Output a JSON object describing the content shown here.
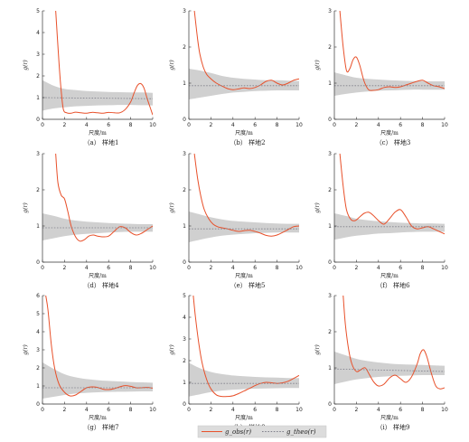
{
  "figure": {
    "xlabel": "尺度/m",
    "ylabel": "g(r)",
    "legend": {
      "observed_label": "g_obs(r)",
      "theoretical_label": "g_theo(r)"
    },
    "colors": {
      "observed": "#e8502a",
      "envelope": "#d0d0d0",
      "theoretical": "#7f7f8a",
      "axis": "#333333"
    }
  },
  "chart_data": [
    {
      "type": "line",
      "caption": "（a） 样地1",
      "xlim": [
        0,
        10
      ],
      "ylim": [
        0,
        5
      ],
      "xticks": [
        0,
        2,
        4,
        6,
        8,
        10
      ],
      "yticks": [
        0,
        1,
        2,
        3,
        4,
        5
      ],
      "series": [
        {
          "role": "observed",
          "x": [
            1.2,
            1.5,
            1.7,
            1.9,
            2.2,
            2.6,
            3.0,
            3.5,
            4.0,
            4.5,
            5.0,
            5.5,
            6.0,
            6.5,
            7.0,
            7.5,
            8.0,
            8.3,
            8.6,
            8.9,
            9.2,
            9.5,
            9.8,
            10.0
          ],
          "y": [
            5.0,
            2.6,
            1.3,
            0.45,
            0.3,
            0.28,
            0.33,
            0.3,
            0.28,
            0.32,
            0.3,
            0.28,
            0.32,
            0.3,
            0.3,
            0.45,
            0.8,
            1.2,
            1.55,
            1.65,
            1.45,
            0.95,
            0.5,
            0.2
          ]
        },
        {
          "role": "theoretical",
          "x": [
            0,
            10
          ],
          "y": [
            1.0,
            0.95
          ]
        }
      ],
      "envelope": {
        "x": [
          0,
          1,
          2,
          3,
          4,
          5,
          6,
          7,
          8,
          9,
          10
        ],
        "lower": [
          0.4,
          0.5,
          0.55,
          0.6,
          0.62,
          0.64,
          0.65,
          0.66,
          0.66,
          0.65,
          0.64
        ],
        "upper": [
          1.8,
          1.55,
          1.4,
          1.35,
          1.3,
          1.28,
          1.26,
          1.25,
          1.24,
          1.24,
          1.22
        ]
      }
    },
    {
      "type": "line",
      "caption": "（b） 样地2",
      "xlim": [
        0,
        10
      ],
      "ylim": [
        0,
        3
      ],
      "xticks": [
        0,
        2,
        4,
        6,
        8,
        10
      ],
      "yticks": [
        0,
        1,
        2,
        3
      ],
      "series": [
        {
          "role": "observed",
          "x": [
            0.5,
            0.8,
            1.0,
            1.3,
            1.6,
            2.0,
            2.5,
            3.0,
            3.5,
            4.0,
            4.5,
            5.0,
            5.5,
            6.0,
            6.5,
            7.0,
            7.5,
            8.0,
            8.5,
            9.0,
            9.5,
            10.0
          ],
          "y": [
            3.0,
            2.2,
            1.8,
            1.45,
            1.25,
            1.12,
            1.0,
            0.92,
            0.85,
            0.82,
            0.84,
            0.87,
            0.85,
            0.88,
            0.95,
            1.05,
            1.08,
            1.0,
            0.95,
            1.0,
            1.08,
            1.12
          ]
        },
        {
          "role": "theoretical",
          "x": [
            0,
            10
          ],
          "y": [
            0.93,
            0.93
          ]
        }
      ],
      "envelope": {
        "x": [
          0,
          1,
          2,
          3,
          4,
          5,
          6,
          7,
          8,
          9,
          10
        ],
        "lower": [
          0.55,
          0.6,
          0.65,
          0.7,
          0.74,
          0.76,
          0.78,
          0.79,
          0.8,
          0.8,
          0.8
        ],
        "upper": [
          1.4,
          1.35,
          1.28,
          1.2,
          1.15,
          1.12,
          1.1,
          1.08,
          1.08,
          1.07,
          1.06
        ]
      }
    },
    {
      "type": "line",
      "caption": "（c） 样地3",
      "xlim": [
        0,
        10
      ],
      "ylim": [
        0,
        3
      ],
      "xticks": [
        0,
        2,
        4,
        6,
        8,
        10
      ],
      "yticks": [
        0,
        1,
        2,
        3
      ],
      "series": [
        {
          "role": "observed",
          "x": [
            0.5,
            0.8,
            1.1,
            1.4,
            1.7,
            2.0,
            2.3,
            2.7,
            3.1,
            3.5,
            4.0,
            4.5,
            5.0,
            5.5,
            6.0,
            6.5,
            7.0,
            7.5,
            8.0,
            8.5,
            9.0,
            9.5,
            10.0
          ],
          "y": [
            3.0,
            2.0,
            1.35,
            1.4,
            1.65,
            1.72,
            1.5,
            1.05,
            0.82,
            0.8,
            0.82,
            0.88,
            0.9,
            0.88,
            0.9,
            0.95,
            1.0,
            1.05,
            1.08,
            1.0,
            0.93,
            0.9,
            0.85
          ]
        },
        {
          "role": "theoretical",
          "x": [
            0,
            10
          ],
          "y": [
            0.93,
            0.93
          ]
        }
      ],
      "envelope": {
        "x": [
          0,
          1,
          2,
          3,
          4,
          5,
          6,
          7,
          8,
          9,
          10
        ],
        "lower": [
          0.65,
          0.7,
          0.74,
          0.77,
          0.79,
          0.8,
          0.81,
          0.82,
          0.82,
          0.82,
          0.82
        ],
        "upper": [
          1.3,
          1.22,
          1.15,
          1.12,
          1.1,
          1.08,
          1.07,
          1.06,
          1.06,
          1.05,
          1.05
        ]
      }
    },
    {
      "type": "line",
      "caption": "（d） 样地4",
      "xlim": [
        0,
        10
      ],
      "ylim": [
        0,
        3
      ],
      "xticks": [
        0,
        2,
        4,
        6,
        8,
        10
      ],
      "yticks": [
        0,
        1,
        2,
        3
      ],
      "series": [
        {
          "role": "observed",
          "x": [
            1.2,
            1.4,
            1.7,
            2.0,
            2.3,
            2.6,
            3.0,
            3.4,
            3.8,
            4.2,
            4.6,
            5.0,
            5.5,
            6.0,
            6.5,
            7.0,
            7.5,
            8.0,
            8.5,
            9.0,
            9.5,
            10.0
          ],
          "y": [
            3.0,
            2.2,
            1.85,
            1.75,
            1.4,
            1.0,
            0.7,
            0.58,
            0.62,
            0.72,
            0.75,
            0.72,
            0.7,
            0.72,
            0.85,
            0.98,
            0.95,
            0.82,
            0.75,
            0.8,
            0.9,
            1.0
          ]
        },
        {
          "role": "theoretical",
          "x": [
            0,
            10
          ],
          "y": [
            0.95,
            0.95
          ]
        }
      ],
      "envelope": {
        "x": [
          0,
          1,
          2,
          3,
          4,
          5,
          6,
          7,
          8,
          9,
          10
        ],
        "lower": [
          0.6,
          0.66,
          0.72,
          0.76,
          0.78,
          0.8,
          0.82,
          0.83,
          0.84,
          0.84,
          0.84
        ],
        "upper": [
          1.35,
          1.28,
          1.2,
          1.15,
          1.12,
          1.1,
          1.08,
          1.07,
          1.06,
          1.05,
          1.05
        ]
      }
    },
    {
      "type": "line",
      "caption": "（e） 样地5",
      "xlim": [
        0,
        10
      ],
      "ylim": [
        0,
        3
      ],
      "xticks": [
        0,
        2,
        4,
        6,
        8,
        10
      ],
      "yticks": [
        0,
        1,
        2,
        3
      ],
      "series": [
        {
          "role": "observed",
          "x": [
            0.5,
            0.8,
            1.1,
            1.4,
            1.8,
            2.2,
            2.6,
            3.0,
            3.5,
            4.0,
            4.5,
            5.0,
            5.5,
            6.0,
            6.5,
            7.0,
            7.5,
            8.0,
            8.5,
            9.0,
            9.5,
            10.0
          ],
          "y": [
            3.0,
            2.3,
            1.8,
            1.45,
            1.2,
            1.05,
            0.98,
            0.95,
            0.92,
            0.88,
            0.85,
            0.87,
            0.88,
            0.85,
            0.8,
            0.74,
            0.72,
            0.75,
            0.82,
            0.9,
            0.98,
            1.0
          ]
        },
        {
          "role": "theoretical",
          "x": [
            0,
            10
          ],
          "y": [
            0.92,
            0.92
          ]
        }
      ],
      "envelope": {
        "x": [
          0,
          1,
          2,
          3,
          4,
          5,
          6,
          7,
          8,
          9,
          10
        ],
        "lower": [
          0.55,
          0.62,
          0.68,
          0.73,
          0.76,
          0.78,
          0.8,
          0.81,
          0.82,
          0.82,
          0.82
        ],
        "upper": [
          1.4,
          1.32,
          1.24,
          1.18,
          1.14,
          1.12,
          1.1,
          1.08,
          1.07,
          1.06,
          1.06
        ]
      }
    },
    {
      "type": "line",
      "caption": "（f） 样地6",
      "xlim": [
        0,
        10
      ],
      "ylim": [
        0,
        3
      ],
      "xticks": [
        0,
        2,
        4,
        6,
        8,
        10
      ],
      "yticks": [
        0,
        1,
        2,
        3
      ],
      "series": [
        {
          "role": "observed",
          "x": [
            0.5,
            0.8,
            1.1,
            1.5,
            1.9,
            2.3,
            2.7,
            3.1,
            3.5,
            4.0,
            4.5,
            5.0,
            5.5,
            6.0,
            6.5,
            7.0,
            7.5,
            8.0,
            8.5,
            9.0,
            9.5,
            10.0
          ],
          "y": [
            3.0,
            2.1,
            1.45,
            1.18,
            1.15,
            1.25,
            1.35,
            1.38,
            1.3,
            1.15,
            1.05,
            1.2,
            1.38,
            1.45,
            1.25,
            1.0,
            0.92,
            0.95,
            0.98,
            0.92,
            0.85,
            0.78
          ]
        },
        {
          "role": "theoretical",
          "x": [
            0,
            10
          ],
          "y": [
            0.98,
            0.98
          ]
        }
      ],
      "envelope": {
        "x": [
          0,
          1,
          2,
          3,
          4,
          5,
          6,
          7,
          8,
          9,
          10
        ],
        "lower": [
          0.62,
          0.68,
          0.73,
          0.76,
          0.79,
          0.8,
          0.82,
          0.83,
          0.84,
          0.84,
          0.84
        ],
        "upper": [
          1.35,
          1.28,
          1.2,
          1.16,
          1.13,
          1.11,
          1.09,
          1.08,
          1.07,
          1.07,
          1.06
        ]
      }
    },
    {
      "type": "line",
      "caption": "（g） 样地7",
      "xlim": [
        0,
        10
      ],
      "ylim": [
        0,
        6
      ],
      "xticks": [
        0,
        2,
        4,
        6,
        8,
        10
      ],
      "yticks": [
        0,
        1,
        2,
        3,
        4,
        5,
        6
      ],
      "series": [
        {
          "role": "observed",
          "x": [
            0.3,
            0.5,
            0.8,
            1.1,
            1.5,
            2.0,
            2.5,
            3.0,
            3.5,
            4.0,
            4.5,
            5.0,
            5.5,
            6.0,
            6.5,
            7.0,
            7.5,
            8.0,
            8.5,
            9.0,
            9.5,
            10.0
          ],
          "y": [
            6.0,
            5.2,
            3.3,
            2.0,
            1.1,
            0.65,
            0.45,
            0.5,
            0.7,
            0.9,
            0.95,
            0.92,
            0.82,
            0.8,
            0.85,
            0.95,
            1.02,
            0.98,
            0.9,
            0.9,
            0.92,
            0.88
          ]
        },
        {
          "role": "theoretical",
          "x": [
            0,
            10
          ],
          "y": [
            0.9,
            0.9
          ]
        }
      ],
      "envelope": {
        "x": [
          0,
          1,
          2,
          3,
          4,
          5,
          6,
          7,
          8,
          9,
          10
        ],
        "lower": [
          0.3,
          0.4,
          0.5,
          0.58,
          0.62,
          0.65,
          0.67,
          0.68,
          0.69,
          0.7,
          0.7
        ],
        "upper": [
          2.3,
          1.95,
          1.65,
          1.48,
          1.38,
          1.32,
          1.28,
          1.25,
          1.22,
          1.2,
          1.18
        ]
      }
    },
    {
      "type": "line",
      "caption": "（h） 样地8",
      "xlim": [
        0,
        10
      ],
      "ylim": [
        0,
        5
      ],
      "xticks": [
        0,
        2,
        4,
        6,
        8,
        10
      ],
      "yticks": [
        0,
        1,
        2,
        3,
        4,
        5
      ],
      "series": [
        {
          "role": "observed",
          "x": [
            0.4,
            0.6,
            0.9,
            1.2,
            1.6,
            2.0,
            2.5,
            3.0,
            3.5,
            4.0,
            4.5,
            5.0,
            5.5,
            6.0,
            6.5,
            7.0,
            7.5,
            8.0,
            8.5,
            9.0,
            9.5,
            10.0
          ],
          "y": [
            5.0,
            4.0,
            2.8,
            1.9,
            1.15,
            0.7,
            0.42,
            0.35,
            0.35,
            0.38,
            0.48,
            0.6,
            0.72,
            0.85,
            0.95,
            1.0,
            0.98,
            0.95,
            0.98,
            1.05,
            1.18,
            1.32
          ]
        },
        {
          "role": "theoretical",
          "x": [
            0,
            10
          ],
          "y": [
            0.95,
            0.95
          ]
        }
      ],
      "envelope": {
        "x": [
          0,
          1,
          2,
          3,
          4,
          5,
          6,
          7,
          8,
          9,
          10
        ],
        "lower": [
          0.35,
          0.45,
          0.55,
          0.62,
          0.66,
          0.69,
          0.71,
          0.72,
          0.73,
          0.74,
          0.74
        ],
        "upper": [
          1.9,
          1.65,
          1.48,
          1.38,
          1.32,
          1.28,
          1.25,
          1.23,
          1.22,
          1.2,
          1.2
        ]
      }
    },
    {
      "type": "line",
      "caption": "（i） 样地9",
      "xlim": [
        0,
        10
      ],
      "ylim": [
        0,
        3
      ],
      "xticks": [
        0,
        2,
        4,
        6,
        8,
        10
      ],
      "yticks": [
        0,
        1,
        2,
        3
      ],
      "series": [
        {
          "role": "observed",
          "x": [
            0.8,
            1.0,
            1.3,
            1.6,
            2.0,
            2.4,
            2.8,
            3.2,
            3.6,
            4.0,
            4.5,
            5.0,
            5.5,
            6.0,
            6.5,
            7.0,
            7.5,
            7.8,
            8.1,
            8.4,
            8.8,
            9.2,
            9.6,
            10.0
          ],
          "y": [
            3.0,
            2.2,
            1.5,
            1.1,
            0.9,
            0.95,
            1.0,
            0.8,
            0.6,
            0.5,
            0.55,
            0.72,
            0.8,
            0.7,
            0.6,
            0.75,
            1.1,
            1.4,
            1.5,
            1.3,
            0.85,
            0.5,
            0.42,
            0.45
          ]
        },
        {
          "role": "theoretical",
          "x": [
            0,
            10
          ],
          "y": [
            0.97,
            0.9
          ]
        }
      ],
      "envelope": {
        "x": [
          0,
          1,
          2,
          3,
          4,
          5,
          6,
          7,
          8,
          9,
          10
        ],
        "lower": [
          0.55,
          0.62,
          0.68,
          0.72,
          0.75,
          0.77,
          0.78,
          0.79,
          0.8,
          0.8,
          0.8
        ],
        "upper": [
          1.45,
          1.35,
          1.25,
          1.19,
          1.15,
          1.12,
          1.1,
          1.09,
          1.08,
          1.07,
          1.06
        ]
      }
    }
  ]
}
